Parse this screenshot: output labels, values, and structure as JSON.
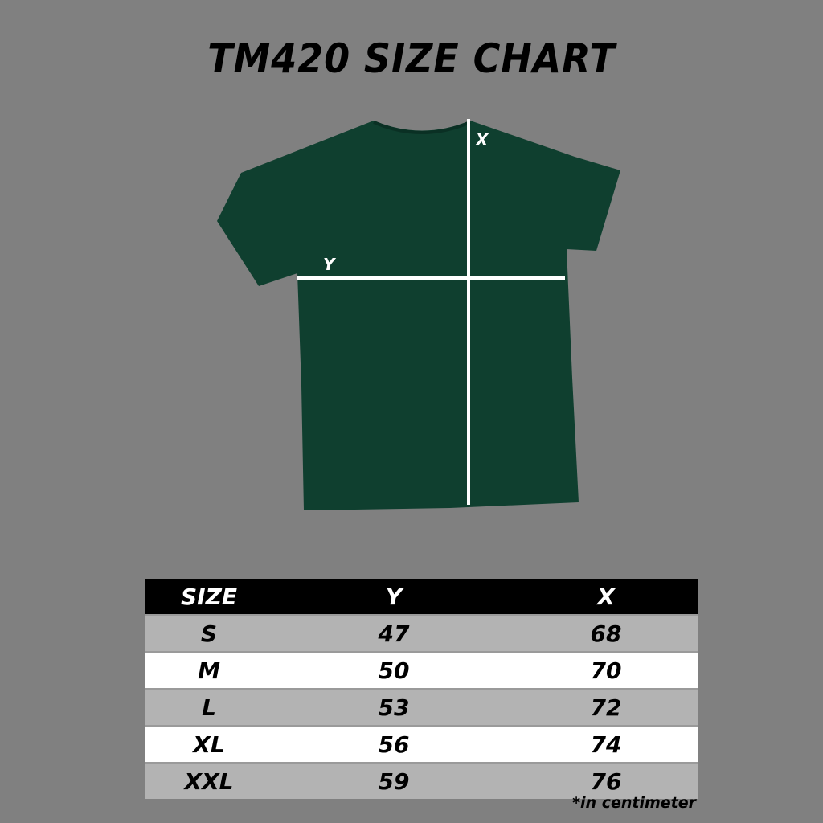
{
  "title": "TM420 SIZE CHART",
  "shirt": {
    "color": "#0f3f2f",
    "x_label": "X",
    "y_label": "Y"
  },
  "table": {
    "headers": [
      "SIZE",
      "Y",
      "X"
    ],
    "rows": [
      [
        "S",
        "47",
        "68"
      ],
      [
        "M",
        "50",
        "70"
      ],
      [
        "L",
        "53",
        "72"
      ],
      [
        "XL",
        "56",
        "74"
      ],
      [
        "XXL",
        "59",
        "76"
      ]
    ]
  },
  "note": "*in centimeter"
}
